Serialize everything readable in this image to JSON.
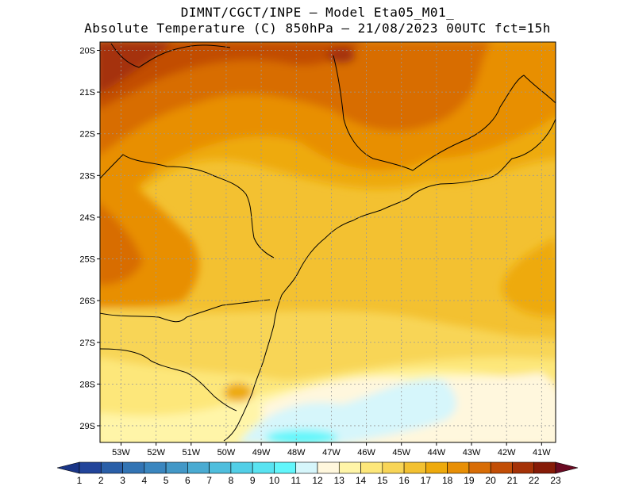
{
  "title_line1": "DIMNT/CGCT/INPE  –  Model Eta05_M01_",
  "title_line2": "Absolute Temperature (C) 850hPa –  21/08/2023 00UTC fct=15h",
  "lat_labels": [
    "20S",
    "21S",
    "22S",
    "23S",
    "24S",
    "25S",
    "26S",
    "27S",
    "28S",
    "29S"
  ],
  "lon_labels": [
    "53W",
    "52W",
    "51W",
    "50W",
    "49W",
    "48W",
    "47W",
    "46W",
    "45W",
    "44W",
    "43W",
    "42W",
    "41W"
  ],
  "colorbar": {
    "labels": [
      "1",
      "2",
      "3",
      "4",
      "5",
      "6",
      "7",
      "8",
      "9",
      "10",
      "11",
      "12",
      "13",
      "14",
      "15",
      "16",
      "17",
      "18",
      "19",
      "20",
      "21",
      "22",
      "23"
    ],
    "colors": [
      "#22449a",
      "#2a5fa8",
      "#3274b4",
      "#3a86bf",
      "#4398c7",
      "#4aabd2",
      "#4fbedd",
      "#52cfe7",
      "#59e3f1",
      "#62f6fb",
      "#d6f6fb",
      "#fff7dd",
      "#fff5a8",
      "#fde77a",
      "#f8d557",
      "#f3c131",
      "#eeaa0c",
      "#e88f05",
      "#d86d06",
      "#c24e06",
      "#a53207",
      "#861b07",
      "#6c0708"
    ],
    "left_color": "#1a3586",
    "right_color": "#6a0a22"
  },
  "legend_range": {
    "min": 1,
    "max": 23,
    "unit": "C"
  }
}
